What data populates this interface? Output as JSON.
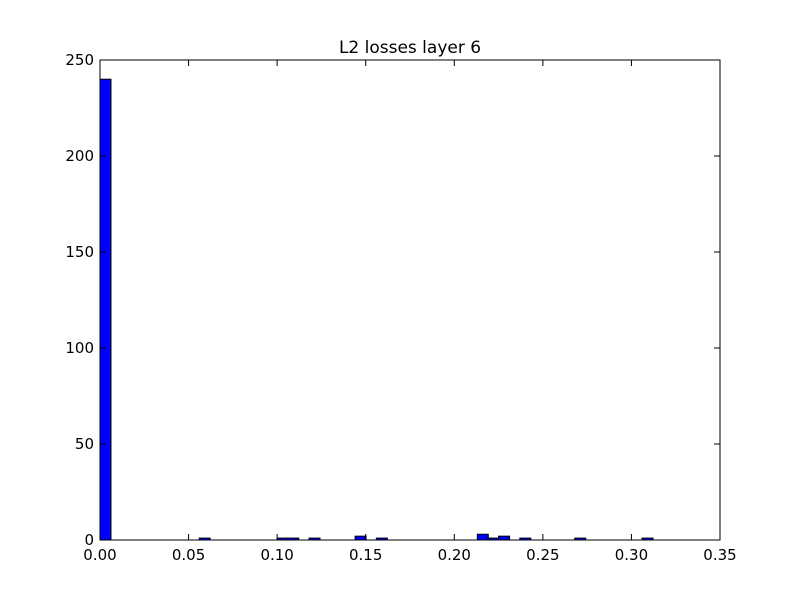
{
  "chart_data": {
    "type": "bar",
    "title": "L2 losses layer 6",
    "xlabel": "",
    "ylabel": "",
    "xlim": [
      0.0,
      0.35
    ],
    "ylim": [
      0,
      250
    ],
    "x_ticks": [
      "0.00",
      "0.05",
      "0.10",
      "0.15",
      "0.20",
      "0.25",
      "0.30",
      "0.35"
    ],
    "y_ticks": [
      "0",
      "50",
      "100",
      "150",
      "200",
      "250"
    ],
    "bin_width": 0.0062,
    "bars": [
      {
        "x": 0.0,
        "value": 240
      },
      {
        "x": 0.056,
        "value": 1
      },
      {
        "x": 0.1,
        "value": 1
      },
      {
        "x": 0.106,
        "value": 1
      },
      {
        "x": 0.118,
        "value": 1
      },
      {
        "x": 0.144,
        "value": 2
      },
      {
        "x": 0.156,
        "value": 1
      },
      {
        "x": 0.213,
        "value": 3
      },
      {
        "x": 0.219,
        "value": 1
      },
      {
        "x": 0.225,
        "value": 2
      },
      {
        "x": 0.237,
        "value": 1
      },
      {
        "x": 0.268,
        "value": 1
      },
      {
        "x": 0.306,
        "value": 1
      }
    ],
    "bar_color": "#0000ff",
    "grid": false,
    "legend": "none"
  }
}
